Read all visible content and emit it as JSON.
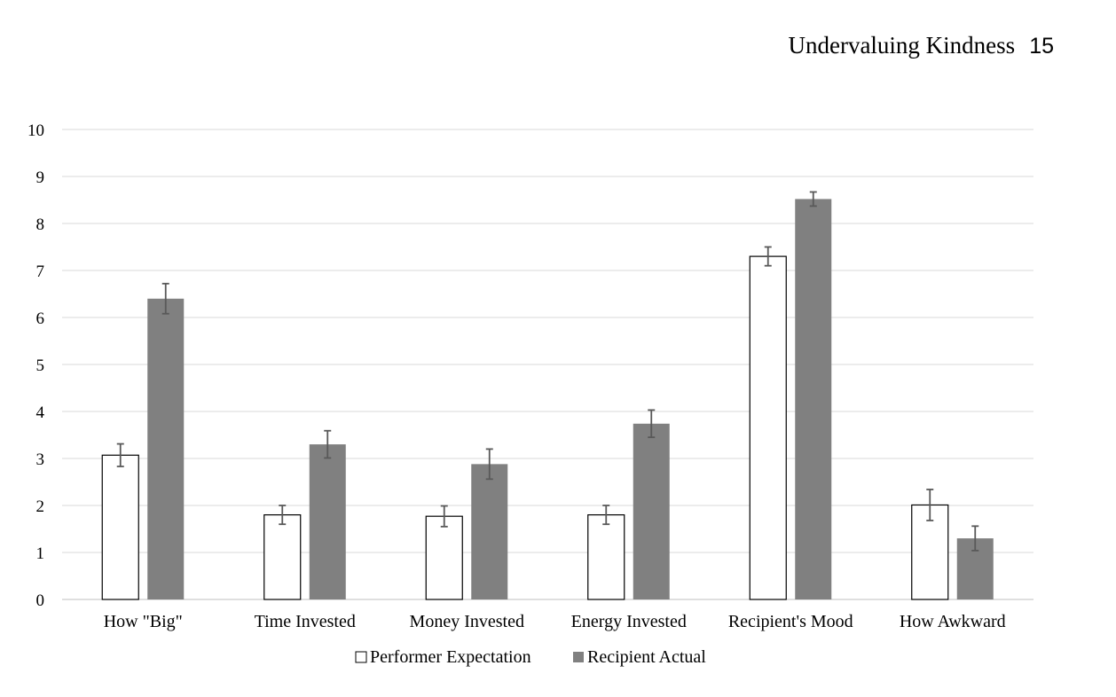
{
  "header": {
    "title": "Undervaluing Kindness",
    "page": "15"
  },
  "colors": {
    "expectation": "#ffffff",
    "actual": "#808080",
    "outline": "#000000",
    "grid": "#d9d9d9",
    "error": "#595959"
  },
  "chart_data": {
    "type": "bar",
    "categories": [
      "How \"Big\"",
      "Time Invested",
      "Money Invested",
      "Energy Invested",
      "Recipient's Mood",
      "How Awkward"
    ],
    "series": [
      {
        "name": "Performer Expectation",
        "values": [
          3.07,
          1.8,
          1.77,
          1.8,
          7.3,
          2.01
        ],
        "error": [
          0.24,
          0.2,
          0.22,
          0.2,
          0.2,
          0.33
        ]
      },
      {
        "name": "Recipient Actual",
        "values": [
          6.4,
          3.3,
          2.88,
          3.74,
          8.52,
          1.3
        ],
        "error": [
          0.32,
          0.29,
          0.32,
          0.29,
          0.15,
          0.26
        ]
      }
    ],
    "yticks": [
      "0",
      "1",
      "2",
      "3",
      "4",
      "5",
      "6",
      "7",
      "8",
      "9",
      "10"
    ],
    "ylim": [
      0,
      10
    ],
    "grid": true,
    "legend": "bottom"
  }
}
